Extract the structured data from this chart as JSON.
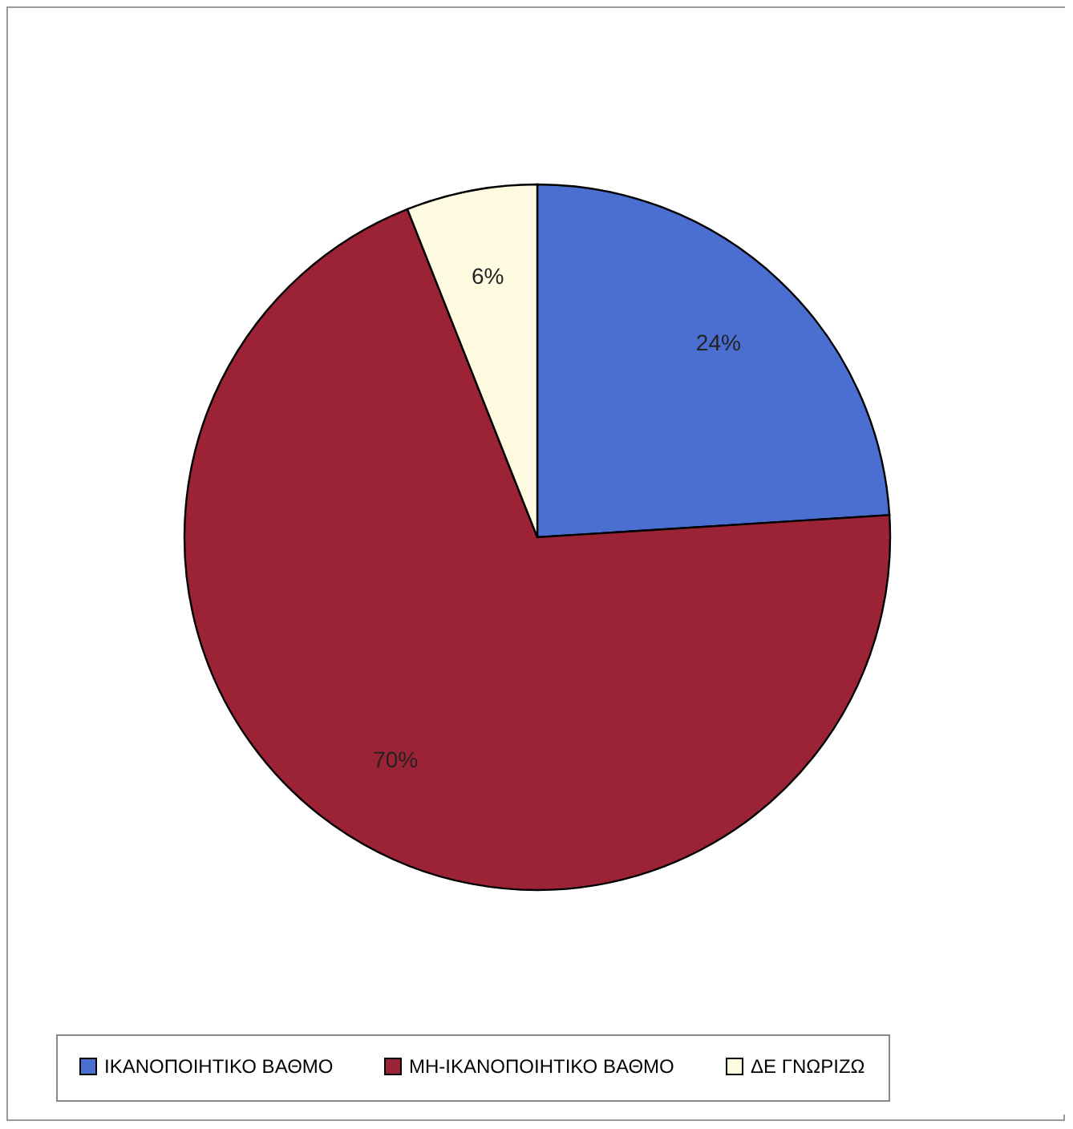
{
  "chart_data": {
    "type": "pie",
    "categories": [
      "ΙΚΑΝΟΠΟΙΗΤΙΚΟ ΒΑΘΜΟ",
      "ΜΗ-ΙΚΑΝΟΠΟΙΗΤΙΚΟ ΒΑΘΜΟ",
      "ΔΕ ΓΝΩΡΙΖΩ"
    ],
    "values": [
      24,
      70,
      6
    ],
    "colors": [
      "#4a6fd0",
      "#9b2335",
      "#fffbe0"
    ],
    "value_labels": [
      "24%",
      "70%",
      "6%"
    ],
    "legend": "bottom"
  }
}
